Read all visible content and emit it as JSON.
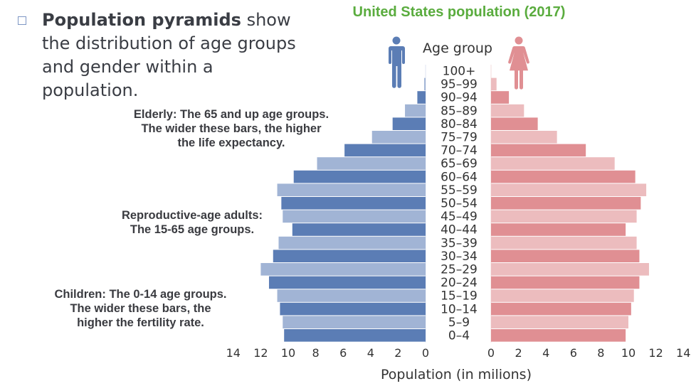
{
  "intro": {
    "bold": "Population pyramids",
    "rest": " show the distribution of age groups and gender within a population."
  },
  "annotations": {
    "elderly": [
      "Elderly: The 65 and up age groups.",
      "The wider these bars, the higher",
      "the life expectancy."
    ],
    "adults": [
      "Reproductive-age adults:",
      "The 15-65 age groups."
    ],
    "children": [
      "Children: The 0-14 age groups.",
      "The wider these bars, the",
      "higher the fertility rate."
    ]
  },
  "icons": {
    "male": "male-person-icon",
    "female": "female-person-icon"
  },
  "colors": {
    "title": "#5aac3e",
    "male_dark": "#5b7db5",
    "male_light": "#a1b4d5",
    "female_dark": "#e08f93",
    "female_light": "#ecbcbe"
  },
  "chart_data": {
    "type": "bar",
    "subtype": "population-pyramid",
    "title": "United States population (2017)",
    "category_label": "Age group",
    "xlabel": "Population (in milions)",
    "xlim": [
      0,
      14
    ],
    "ticks": [
      "0",
      "2",
      "4",
      "6",
      "8",
      "10",
      "12",
      "14"
    ],
    "tick_values": [
      0,
      2,
      4,
      6,
      8,
      10,
      12,
      14
    ],
    "categories": [
      "100+",
      "95–99",
      "90–94",
      "85–89",
      "80–84",
      "75–79",
      "70–74",
      "65–69",
      "60–64",
      "55–59",
      "50–54",
      "45–49",
      "40–44",
      "35–39",
      "30–34",
      "25–29",
      "20–24",
      "15–19",
      "10–14",
      "5–9",
      "0–4"
    ],
    "series": [
      {
        "name": "Male",
        "side": "left",
        "values": [
          0.0,
          0.1,
          0.6,
          1.5,
          2.4,
          3.9,
          5.9,
          7.9,
          9.6,
          10.8,
          10.5,
          10.4,
          9.7,
          10.7,
          11.1,
          12.0,
          11.4,
          10.8,
          10.6,
          10.4,
          10.3
        ]
      },
      {
        "name": "Female",
        "side": "right",
        "values": [
          0.0,
          0.4,
          1.3,
          2.4,
          3.4,
          4.8,
          6.9,
          9.0,
          10.5,
          11.3,
          10.9,
          10.6,
          9.8,
          10.6,
          10.8,
          11.5,
          10.8,
          10.4,
          10.2,
          10.0,
          9.8
        ]
      }
    ],
    "grid": false,
    "legend": "icons-top"
  }
}
